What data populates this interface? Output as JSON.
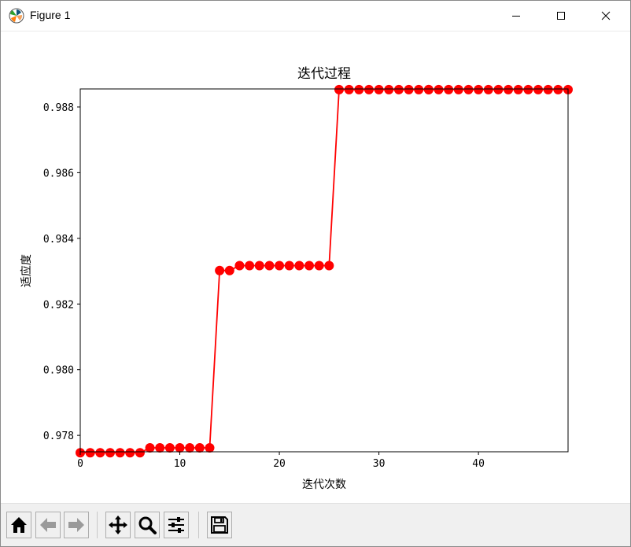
{
  "window": {
    "title": "Figure 1",
    "controls": [
      "minimize",
      "maximize",
      "close"
    ]
  },
  "toolbar": {
    "buttons": [
      {
        "name": "home-button",
        "icon": "home-icon"
      },
      {
        "name": "back-button",
        "icon": "arrow-left-icon"
      },
      {
        "name": "forward-button",
        "icon": "arrow-right-icon"
      },
      {
        "name": "pan-button",
        "icon": "move-icon"
      },
      {
        "name": "zoom-button",
        "icon": "magnifier-icon"
      },
      {
        "name": "configure-subplots-button",
        "icon": "sliders-icon"
      },
      {
        "name": "save-button",
        "icon": "floppy-disk-icon"
      }
    ]
  },
  "chart_data": {
    "type": "line",
    "title": "迭代过程",
    "xlabel": "迭代次数",
    "ylabel": "适应度",
    "xlim": [
      0,
      49
    ],
    "ylim": [
      0.9775,
      0.98855
    ],
    "xticks": [
      0,
      10,
      20,
      30,
      40
    ],
    "yticks": [
      0.978,
      0.98,
      0.982,
      0.984,
      0.986,
      0.988
    ],
    "ytick_labels": [
      "0.978",
      "0.980",
      "0.982",
      "0.984",
      "0.986",
      "0.988"
    ],
    "grid": false,
    "color": "#ff0000",
    "marker": "circle",
    "series": [
      {
        "x": [
          0,
          1,
          2,
          3,
          4,
          5,
          6,
          7,
          8,
          9,
          10,
          11,
          12,
          13,
          14,
          15,
          16,
          17,
          18,
          19,
          20,
          21,
          22,
          23,
          24,
          25,
          26,
          27,
          28,
          29,
          30,
          31,
          32,
          33,
          34,
          35,
          35,
          36,
          37,
          38,
          39,
          40,
          41,
          42,
          43,
          44,
          45,
          46,
          47,
          48,
          49
        ],
        "y": [
          0.97747,
          0.97747,
          0.97747,
          0.97747,
          0.97747,
          0.97747,
          0.97747,
          0.97762,
          0.97762,
          0.97762,
          0.97762,
          0.97762,
          0.97762,
          0.97762,
          0.98302,
          0.98302,
          0.98317,
          0.98317,
          0.98317,
          0.98317,
          0.98317,
          0.98317,
          0.98317,
          0.98317,
          0.98317,
          0.98317,
          0.98853,
          0.98853,
          0.98853,
          0.98853,
          0.98853,
          0.98853,
          0.98853,
          0.98853,
          0.98853,
          0.98853,
          0.98853,
          0.98853,
          0.98853,
          0.98853,
          0.98853,
          0.98853,
          0.98853,
          0.98853,
          0.98853,
          0.98853,
          0.98853,
          0.98853,
          0.98853,
          0.98853,
          0.98853
        ]
      }
    ]
  }
}
